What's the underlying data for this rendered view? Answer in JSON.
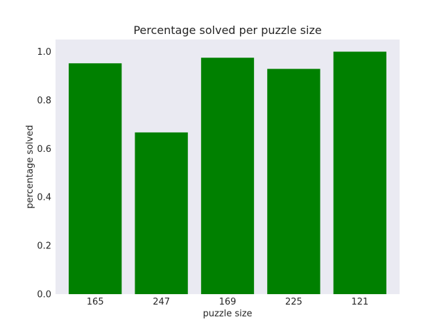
{
  "chart_data": {
    "type": "bar",
    "title": "Percentage solved per puzzle size",
    "xlabel": "puzzle size",
    "ylabel": "percentage solved",
    "categories": [
      "165",
      "247",
      "169",
      "225",
      "121"
    ],
    "values": [
      0.952,
      0.667,
      0.975,
      0.929,
      1.0
    ],
    "ylim": [
      0,
      1.05
    ],
    "yticks": [
      0.0,
      0.2,
      0.4,
      0.6,
      0.8,
      1.0
    ],
    "ytick_labels": [
      "0.0",
      "0.2",
      "0.4",
      "0.6",
      "0.8",
      "1.0"
    ],
    "bar_color": "#008000",
    "background_color": "#EAEAF2",
    "grid": false,
    "legend": "none"
  }
}
